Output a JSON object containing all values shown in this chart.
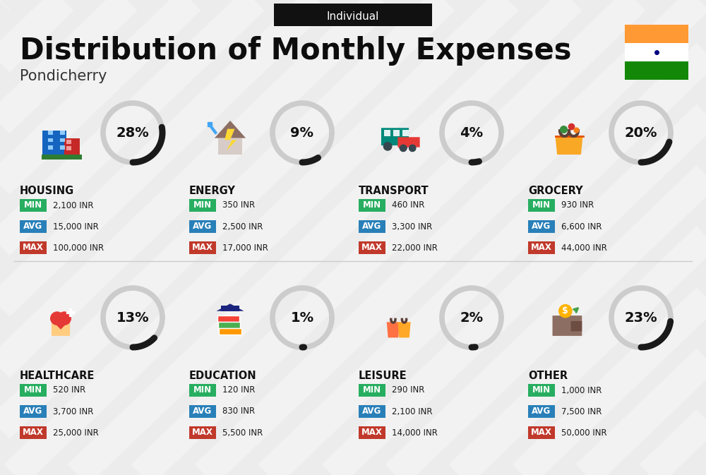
{
  "title": "Distribution of Monthly Expenses",
  "subtitle": "Individual",
  "location": "Pondicherry",
  "bg_color": "#ececec",
  "categories": [
    {
      "name": "HOUSING",
      "percent": 28,
      "icon": "housing",
      "min_val": "2,100 INR",
      "avg_val": "15,000 INR",
      "max_val": "100,000 INR",
      "col": 0,
      "row": 0
    },
    {
      "name": "ENERGY",
      "percent": 9,
      "icon": "energy",
      "min_val": "350 INR",
      "avg_val": "2,500 INR",
      "max_val": "17,000 INR",
      "col": 1,
      "row": 0
    },
    {
      "name": "TRANSPORT",
      "percent": 4,
      "icon": "transport",
      "min_val": "460 INR",
      "avg_val": "3,300 INR",
      "max_val": "22,000 INR",
      "col": 2,
      "row": 0
    },
    {
      "name": "GROCERY",
      "percent": 20,
      "icon": "grocery",
      "min_val": "930 INR",
      "avg_val": "6,600 INR",
      "max_val": "44,000 INR",
      "col": 3,
      "row": 0
    },
    {
      "name": "HEALTHCARE",
      "percent": 13,
      "icon": "healthcare",
      "min_val": "520 INR",
      "avg_val": "3,700 INR",
      "max_val": "25,000 INR",
      "col": 0,
      "row": 1
    },
    {
      "name": "EDUCATION",
      "percent": 1,
      "icon": "education",
      "min_val": "120 INR",
      "avg_val": "830 INR",
      "max_val": "5,500 INR",
      "col": 1,
      "row": 1
    },
    {
      "name": "LEISURE",
      "percent": 2,
      "icon": "leisure",
      "min_val": "290 INR",
      "avg_val": "2,100 INR",
      "max_val": "14,000 INR",
      "col": 2,
      "row": 1
    },
    {
      "name": "OTHER",
      "percent": 23,
      "icon": "other",
      "min_val": "1,000 INR",
      "avg_val": "7,500 INR",
      "max_val": "50,000 INR",
      "col": 3,
      "row": 1
    }
  ],
  "min_color": "#27ae60",
  "avg_color": "#2980b9",
  "max_color": "#c0392b",
  "value_text_color": "#1a1a1a",
  "arc_dark": "#1a1a1a",
  "arc_light": "#cccccc",
  "stripe_color": "#ffffff",
  "flag_orange": "#FF9933",
  "flag_white": "#ffffff",
  "flag_green": "#138808",
  "flag_chakra": "#000080"
}
